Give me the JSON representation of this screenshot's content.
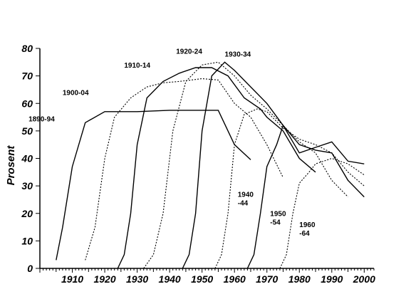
{
  "chart_data": {
    "type": "line",
    "title": "",
    "xlabel": "",
    "ylabel": "Prosent",
    "xlim": [
      1900,
      2003
    ],
    "ylim": [
      0,
      80
    ],
    "x_ticks": [
      1910,
      1920,
      1930,
      1940,
      1950,
      1960,
      1970,
      1980,
      1990,
      2000
    ],
    "y_ticks": [
      0,
      10,
      20,
      30,
      40,
      50,
      60,
      70,
      80
    ],
    "grid": false,
    "legend": "none (series labelled inline)",
    "series": [
      {
        "name": "1890-94",
        "style": "solid",
        "label_lines": [
          "1890-94"
        ],
        "x": [
          1905,
          1907,
          1910,
          1914,
          1920,
          1930,
          1940,
          1950,
          1955,
          1960,
          1965
        ],
        "y": [
          3,
          15,
          37,
          53,
          57,
          57,
          57.5,
          57.5,
          57.5,
          45,
          39.5
        ]
      },
      {
        "name": "1900-04",
        "style": "dotted",
        "label_lines": [
          "1900-04"
        ],
        "x": [
          1914,
          1917,
          1920,
          1923,
          1928,
          1933,
          1938,
          1943,
          1950,
          1955,
          1960,
          1965,
          1970,
          1975
        ],
        "y": [
          3,
          15,
          40,
          55,
          62,
          66,
          67.5,
          68,
          69,
          68.5,
          60,
          55,
          45,
          33
        ]
      },
      {
        "name": "1910-14",
        "style": "solid",
        "label_lines": [
          "1910-14"
        ],
        "x": [
          1924,
          1926,
          1928,
          1930,
          1933,
          1938,
          1943,
          1948,
          1953,
          1958,
          1963,
          1968,
          1970,
          1975,
          1980,
          1985
        ],
        "y": [
          0,
          5,
          20,
          45,
          62,
          68,
          71,
          73,
          73,
          70,
          62,
          58,
          55,
          50,
          40,
          35
        ]
      },
      {
        "name": "1920-24",
        "style": "dotted",
        "label_lines": [
          "1920-24"
        ],
        "x": [
          1932,
          1935,
          1938,
          1941,
          1945,
          1950,
          1955,
          1960,
          1965,
          1970,
          1975,
          1980,
          1985,
          1990,
          1995
        ],
        "y": [
          0,
          5,
          20,
          50,
          68,
          74,
          75,
          70,
          63,
          58,
          52,
          46,
          42,
          32,
          26
        ]
      },
      {
        "name": "1930-34",
        "style": "solid",
        "label_lines": [
          "1930-34"
        ],
        "x": [
          1944,
          1946,
          1948,
          1950,
          1953,
          1957,
          1960,
          1965,
          1970,
          1975,
          1980,
          1985,
          1990,
          1995,
          2000
        ],
        "y": [
          0,
          5,
          20,
          50,
          70,
          75,
          72,
          66,
          60,
          52,
          45,
          43,
          42,
          32,
          26
        ]
      },
      {
        "name": "1940-44",
        "style": "dotted",
        "label_lines": [
          "1940",
          "-44"
        ],
        "x": [
          1954,
          1956,
          1958,
          1960,
          1963,
          1967,
          1970,
          1975,
          1980,
          1985,
          1990,
          1995,
          2000
        ],
        "y": [
          0,
          5,
          20,
          45,
          56,
          58,
          57,
          51,
          47,
          45,
          42,
          35,
          30
        ]
      },
      {
        "name": "1950-54",
        "style": "solid",
        "label_lines": [
          "1950",
          "-54"
        ],
        "x": [
          1964,
          1966,
          1968,
          1970,
          1973,
          1975,
          1980,
          1985,
          1990,
          1995,
          2000
        ],
        "y": [
          0,
          5,
          20,
          37,
          45,
          52,
          42,
          44,
          46,
          39,
          38
        ]
      },
      {
        "name": "1960-64",
        "style": "dotted",
        "label_lines": [
          "1960",
          "-64"
        ],
        "x": [
          1974,
          1976,
          1978,
          1980,
          1983,
          1985,
          1990,
          1995,
          2000
        ],
        "y": [
          0,
          5,
          20,
          31,
          35,
          38,
          40,
          38,
          34
        ]
      }
    ]
  }
}
